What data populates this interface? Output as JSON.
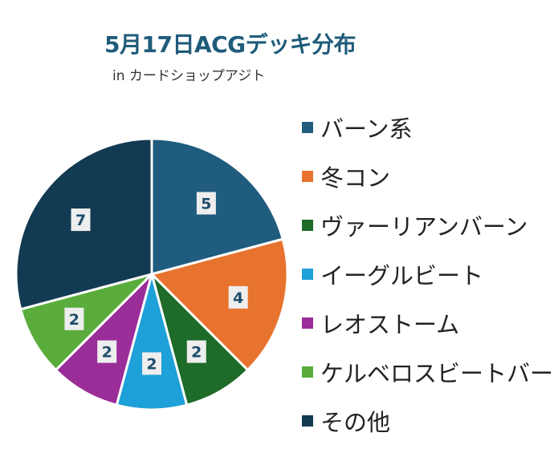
{
  "chart_data": {
    "type": "pie",
    "title": "5月17日ACGデッキ分布",
    "subtitle": "in カードショップアジト",
    "categories": [
      "バーン系",
      "冬コン",
      "ヴァーリアンバーン",
      "イーグルビート",
      "レオストーム",
      "ケルベロスビートバーン",
      "その他"
    ],
    "values": [
      5,
      4,
      2,
      2,
      2,
      2,
      7
    ],
    "colors": [
      "#1f5c7e",
      "#e8732f",
      "#1e6b2a",
      "#1ea0d8",
      "#9b2d99",
      "#5aad3c",
      "#123a52"
    ],
    "legend": "right",
    "start_angle": "12 o'clock, clockwise",
    "data_labels": true
  }
}
